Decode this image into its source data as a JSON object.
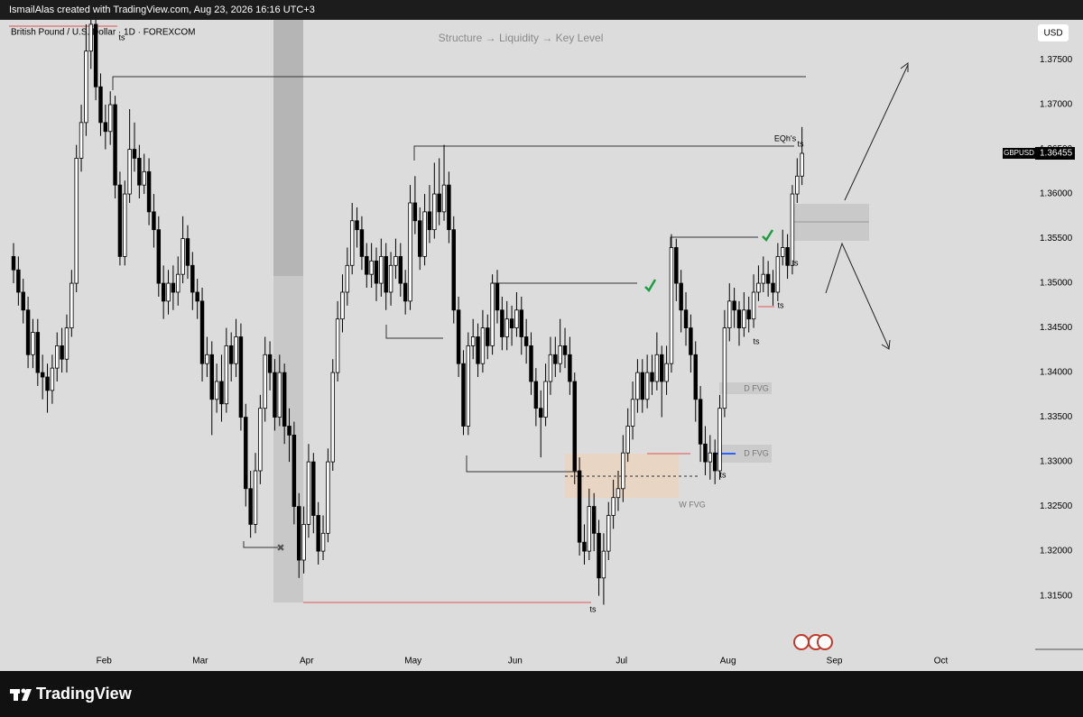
{
  "header": "IsmailAlas created with TradingView.com, Aug 23, 2026 16:16 UTC+3",
  "footer": "TradingView",
  "chart_data": {
    "type": "candlestick",
    "title": "British Pound / U.S. Dollar · 1D · FOREXCOM",
    "subtitle": "Structure → Liquidity → Key Level",
    "currency": "USD",
    "symbol": "GBPUSD",
    "last_price": 1.36455,
    "colors": {
      "up": "#ffffff",
      "down": "#000000",
      "wick": "#000000"
    },
    "grid": false,
    "annotations": [
      "EQh's",
      "ts",
      "ts",
      "ts",
      "ts",
      "ts",
      "ts",
      "ts",
      "D FVG",
      "D FVG",
      "W FVG"
    ],
    "xlim": [
      -2.8,
      211.2
    ],
    "xticks": [
      {
        "value": 18.7,
        "label": "Feb"
      },
      {
        "value": 38.6,
        "label": "Mar"
      },
      {
        "value": 60.6,
        "label": "Apr"
      },
      {
        "value": 82.6,
        "label": "May"
      },
      {
        "value": 103.7,
        "label": "Jun"
      },
      {
        "value": 125.7,
        "label": "Jul"
      },
      {
        "value": 147.7,
        "label": "Aug"
      },
      {
        "value": 169.7,
        "label": "Sep"
      },
      {
        "value": 191.7,
        "label": "Oct"
      }
    ],
    "ylim": [
      1.3088,
      1.3795
    ],
    "yticks": [
      {
        "value": 1.315,
        "label": "1.31500"
      },
      {
        "value": 1.32,
        "label": "1.32000"
      },
      {
        "value": 1.325,
        "label": "1.32500"
      },
      {
        "value": 1.33,
        "label": "1.33000"
      },
      {
        "value": 1.335,
        "label": "1.33500"
      },
      {
        "value": 1.34,
        "label": "1.34000"
      },
      {
        "value": 1.345,
        "label": "1.34500"
      },
      {
        "value": 1.35,
        "label": "1.35000"
      },
      {
        "value": 1.355,
        "label": "1.35500"
      },
      {
        "value": 1.36,
        "label": "1.36000"
      },
      {
        "value": 1.365,
        "label": "1.36500"
      },
      {
        "value": 1.37,
        "label": "1.37000"
      },
      {
        "value": 1.375,
        "label": "1.37500"
      }
    ],
    "ohlc": [
      [
        1.353,
        1.3545,
        1.35,
        1.3515
      ],
      [
        1.3515,
        1.353,
        1.3475,
        1.349
      ],
      [
        1.349,
        1.3505,
        1.3455,
        1.347
      ],
      [
        1.347,
        1.3485,
        1.3405,
        1.342
      ],
      [
        1.342,
        1.346,
        1.3405,
        1.3445
      ],
      [
        1.3445,
        1.346,
        1.3385,
        1.34
      ],
      [
        1.34,
        1.342,
        1.337,
        1.3395
      ],
      [
        1.3395,
        1.341,
        1.3355,
        1.338
      ],
      [
        1.338,
        1.342,
        1.3365,
        1.3405
      ],
      [
        1.3405,
        1.3445,
        1.339,
        1.343
      ],
      [
        1.343,
        1.345,
        1.34,
        1.3415
      ],
      [
        1.3415,
        1.3465,
        1.34,
        1.345
      ],
      [
        1.345,
        1.3515,
        1.344,
        1.35
      ],
      [
        1.35,
        1.3655,
        1.349,
        1.364
      ],
      [
        1.364,
        1.37,
        1.3625,
        1.368
      ],
      [
        1.368,
        1.379,
        1.3665,
        1.376
      ],
      [
        1.376,
        1.381,
        1.374,
        1.379
      ],
      [
        1.379,
        1.3805,
        1.3705,
        1.372
      ],
      [
        1.372,
        1.3735,
        1.3665,
        1.368
      ],
      [
        1.368,
        1.37,
        1.365,
        1.367
      ],
      [
        1.367,
        1.3715,
        1.3655,
        1.37
      ],
      [
        1.37,
        1.371,
        1.3595,
        1.361
      ],
      [
        1.361,
        1.3625,
        1.352,
        1.353
      ],
      [
        1.353,
        1.3615,
        1.352,
        1.36
      ],
      [
        1.36,
        1.3695,
        1.359,
        1.365
      ],
      [
        1.365,
        1.368,
        1.3625,
        1.364
      ],
      [
        1.364,
        1.3655,
        1.3595,
        1.361
      ],
      [
        1.361,
        1.3645,
        1.36,
        1.3625
      ],
      [
        1.3625,
        1.364,
        1.3565,
        1.358
      ],
      [
        1.358,
        1.36,
        1.354,
        1.356
      ],
      [
        1.356,
        1.3575,
        1.3485,
        1.35
      ],
      [
        1.35,
        1.352,
        1.346,
        1.348
      ],
      [
        1.348,
        1.3515,
        1.3465,
        1.35
      ],
      [
        1.35,
        1.352,
        1.347,
        1.349
      ],
      [
        1.349,
        1.353,
        1.3475,
        1.351
      ],
      [
        1.351,
        1.3575,
        1.35,
        1.355
      ],
      [
        1.355,
        1.3565,
        1.3505,
        1.352
      ],
      [
        1.352,
        1.3535,
        1.347,
        1.349
      ],
      [
        1.349,
        1.3505,
        1.346,
        1.348
      ],
      [
        1.348,
        1.3495,
        1.339,
        1.341
      ],
      [
        1.341,
        1.344,
        1.3395,
        1.342
      ],
      [
        1.342,
        1.3435,
        1.333,
        1.337
      ],
      [
        1.337,
        1.341,
        1.3355,
        1.339
      ],
      [
        1.339,
        1.342,
        1.3345,
        1.3365
      ],
      [
        1.3365,
        1.345,
        1.3355,
        1.343
      ],
      [
        1.343,
        1.3445,
        1.339,
        1.341
      ],
      [
        1.341,
        1.346,
        1.3395,
        1.344
      ],
      [
        1.344,
        1.3455,
        1.3335,
        1.335
      ],
      [
        1.335,
        1.3365,
        1.325,
        1.327
      ],
      [
        1.327,
        1.329,
        1.3215,
        1.323
      ],
      [
        1.323,
        1.331,
        1.322,
        1.329
      ],
      [
        1.329,
        1.3375,
        1.3275,
        1.336
      ],
      [
        1.336,
        1.344,
        1.3345,
        1.342
      ],
      [
        1.342,
        1.3435,
        1.338,
        1.34
      ],
      [
        1.34,
        1.3415,
        1.3335,
        1.335
      ],
      [
        1.335,
        1.342,
        1.334,
        1.34
      ],
      [
        1.34,
        1.341,
        1.332,
        1.334
      ],
      [
        1.334,
        1.336,
        1.33,
        1.333
      ],
      [
        1.333,
        1.3345,
        1.323,
        1.325
      ],
      [
        1.325,
        1.3265,
        1.317,
        1.319
      ],
      [
        1.319,
        1.325,
        1.3175,
        1.323
      ],
      [
        1.323,
        1.332,
        1.3215,
        1.33
      ],
      [
        1.33,
        1.331,
        1.322,
        1.324
      ],
      [
        1.324,
        1.3255,
        1.3185,
        1.32
      ],
      [
        1.32,
        1.324,
        1.319,
        1.322
      ],
      [
        1.322,
        1.3315,
        1.321,
        1.33
      ],
      [
        1.33,
        1.3415,
        1.329,
        1.34
      ],
      [
        1.34,
        1.348,
        1.339,
        1.346
      ],
      [
        1.346,
        1.351,
        1.3445,
        1.349
      ],
      [
        1.349,
        1.354,
        1.3475,
        1.352
      ],
      [
        1.352,
        1.359,
        1.351,
        1.357
      ],
      [
        1.357,
        1.3585,
        1.354,
        1.356
      ],
      [
        1.356,
        1.3575,
        1.3515,
        1.353
      ],
      [
        1.353,
        1.3545,
        1.3495,
        1.351
      ],
      [
        1.351,
        1.3545,
        1.3495,
        1.3525
      ],
      [
        1.3525,
        1.354,
        1.348,
        1.35
      ],
      [
        1.35,
        1.355,
        1.3485,
        1.353
      ],
      [
        1.353,
        1.3545,
        1.347,
        1.349
      ],
      [
        1.349,
        1.3535,
        1.3475,
        1.352
      ],
      [
        1.352,
        1.355,
        1.3505,
        1.353
      ],
      [
        1.353,
        1.3545,
        1.3485,
        1.35
      ],
      [
        1.35,
        1.3515,
        1.3465,
        1.348
      ],
      [
        1.348,
        1.361,
        1.347,
        1.359
      ],
      [
        1.359,
        1.362,
        1.3555,
        1.357
      ],
      [
        1.357,
        1.3585,
        1.3515,
        1.353
      ],
      [
        1.353,
        1.36,
        1.352,
        1.358
      ],
      [
        1.358,
        1.361,
        1.3545,
        1.356
      ],
      [
        1.356,
        1.3635,
        1.355,
        1.36
      ],
      [
        1.36,
        1.364,
        1.3565,
        1.358
      ],
      [
        1.358,
        1.3655,
        1.357,
        1.361
      ],
      [
        1.361,
        1.3625,
        1.3545,
        1.356
      ],
      [
        1.356,
        1.3575,
        1.3455,
        1.347
      ],
      [
        1.347,
        1.3485,
        1.3395,
        1.341
      ],
      [
        1.341,
        1.3425,
        1.333,
        1.334
      ],
      [
        1.334,
        1.3445,
        1.333,
        1.343
      ],
      [
        1.343,
        1.346,
        1.3415,
        1.344
      ],
      [
        1.344,
        1.3455,
        1.3395,
        1.341
      ],
      [
        1.341,
        1.347,
        1.34,
        1.345
      ],
      [
        1.345,
        1.3465,
        1.3415,
        1.343
      ],
      [
        1.343,
        1.351,
        1.342,
        1.35
      ],
      [
        1.35,
        1.3515,
        1.3455,
        1.347
      ],
      [
        1.347,
        1.3485,
        1.3425,
        1.344
      ],
      [
        1.344,
        1.348,
        1.3425,
        1.346
      ],
      [
        1.346,
        1.3475,
        1.343,
        1.345
      ],
      [
        1.345,
        1.349,
        1.344,
        1.347
      ],
      [
        1.347,
        1.3485,
        1.342,
        1.344
      ],
      [
        1.344,
        1.346,
        1.341,
        1.343
      ],
      [
        1.343,
        1.3445,
        1.3375,
        1.339
      ],
      [
        1.339,
        1.3405,
        1.334,
        1.336
      ],
      [
        1.336,
        1.338,
        1.3305,
        1.335
      ],
      [
        1.335,
        1.341,
        1.334,
        1.339
      ],
      [
        1.339,
        1.344,
        1.3375,
        1.342
      ],
      [
        1.342,
        1.344,
        1.3395,
        1.341
      ],
      [
        1.341,
        1.346,
        1.34,
        1.343
      ],
      [
        1.343,
        1.345,
        1.3405,
        1.342
      ],
      [
        1.342,
        1.344,
        1.3375,
        1.339
      ],
      [
        1.339,
        1.34,
        1.3275,
        1.329
      ],
      [
        1.329,
        1.3305,
        1.3195,
        1.321
      ],
      [
        1.321,
        1.323,
        1.3185,
        1.32
      ],
      [
        1.32,
        1.327,
        1.319,
        1.325
      ],
      [
        1.325,
        1.3265,
        1.32,
        1.322
      ],
      [
        1.322,
        1.3235,
        1.315,
        1.317
      ],
      [
        1.317,
        1.322,
        1.314,
        1.32
      ],
      [
        1.32,
        1.3255,
        1.319,
        1.324
      ],
      [
        1.324,
        1.328,
        1.3225,
        1.326
      ],
      [
        1.326,
        1.329,
        1.3245,
        1.327
      ],
      [
        1.327,
        1.333,
        1.3255,
        1.331
      ],
      [
        1.331,
        1.336,
        1.33,
        1.334
      ],
      [
        1.334,
        1.339,
        1.3325,
        1.337
      ],
      [
        1.337,
        1.3415,
        1.3355,
        1.34
      ],
      [
        1.34,
        1.3415,
        1.3355,
        1.337
      ],
      [
        1.337,
        1.342,
        1.336,
        1.34
      ],
      [
        1.34,
        1.342,
        1.3375,
        1.339
      ],
      [
        1.339,
        1.3445,
        1.338,
        1.342
      ],
      [
        1.342,
        1.343,
        1.335,
        1.339
      ],
      [
        1.339,
        1.343,
        1.3375,
        1.341
      ],
      [
        1.341,
        1.3555,
        1.34,
        1.354
      ],
      [
        1.354,
        1.355,
        1.348,
        1.35
      ],
      [
        1.35,
        1.3515,
        1.3445,
        1.347
      ],
      [
        1.347,
        1.349,
        1.343,
        1.345
      ],
      [
        1.345,
        1.3465,
        1.34,
        1.342
      ],
      [
        1.342,
        1.3435,
        1.3345,
        1.337
      ],
      [
        1.337,
        1.3385,
        1.33,
        1.332
      ],
      [
        1.332,
        1.334,
        1.3285,
        1.33
      ],
      [
        1.33,
        1.333,
        1.328,
        1.331
      ],
      [
        1.331,
        1.3325,
        1.3275,
        1.329
      ],
      [
        1.329,
        1.3375,
        1.328,
        1.336
      ],
      [
        1.336,
        1.347,
        1.335,
        1.345
      ],
      [
        1.345,
        1.35,
        1.3435,
        1.348
      ],
      [
        1.348,
        1.3495,
        1.345,
        1.347
      ],
      [
        1.347,
        1.348,
        1.343,
        1.345
      ],
      [
        1.345,
        1.349,
        1.344,
        1.347
      ],
      [
        1.347,
        1.3485,
        1.3445,
        1.346
      ],
      [
        1.346,
        1.351,
        1.345,
        1.349
      ],
      [
        1.349,
        1.352,
        1.348,
        1.35
      ],
      [
        1.35,
        1.353,
        1.349,
        1.351
      ],
      [
        1.351,
        1.3525,
        1.3485,
        1.35
      ],
      [
        1.35,
        1.3515,
        1.3475,
        1.349
      ],
      [
        1.349,
        1.3545,
        1.348,
        1.353
      ],
      [
        1.353,
        1.356,
        1.352,
        1.354
      ],
      [
        1.354,
        1.3555,
        1.3505,
        1.352
      ],
      [
        1.352,
        1.361,
        1.351,
        1.36
      ],
      [
        1.36,
        1.364,
        1.359,
        1.362
      ],
      [
        1.362,
        1.3675,
        1.361,
        1.36455
      ]
    ]
  }
}
